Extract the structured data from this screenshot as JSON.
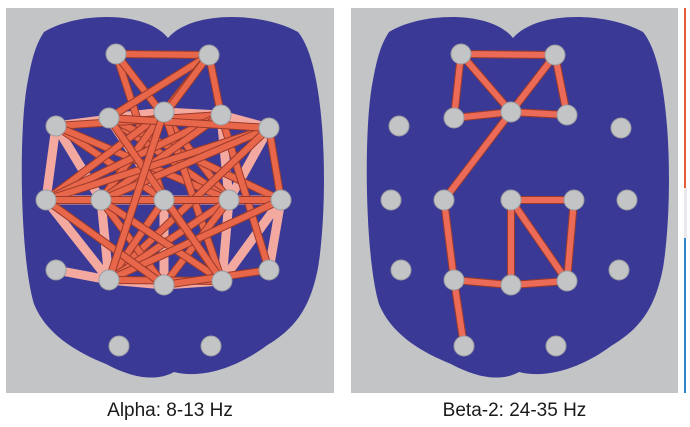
{
  "figure": {
    "panels": [
      {
        "id": "alpha",
        "caption": "Alpha: 8-13 Hz",
        "brain_color": "#3a3a96",
        "edge_color": "#e8664a",
        "edge_light_color": "#f4a9a0",
        "node_color": "#c3c4c6",
        "edge_count": 52
      },
      {
        "id": "beta2",
        "caption": "Beta-2: 24-35 Hz",
        "brain_color": "#3a3a96",
        "edge_color": "#ec6b58",
        "node_color": "#c3c4c6",
        "edge_count": 16
      }
    ],
    "colorbar": {
      "colors": [
        "#e45b3a",
        "#e8e8ee",
        "#2e86c8"
      ]
    }
  }
}
